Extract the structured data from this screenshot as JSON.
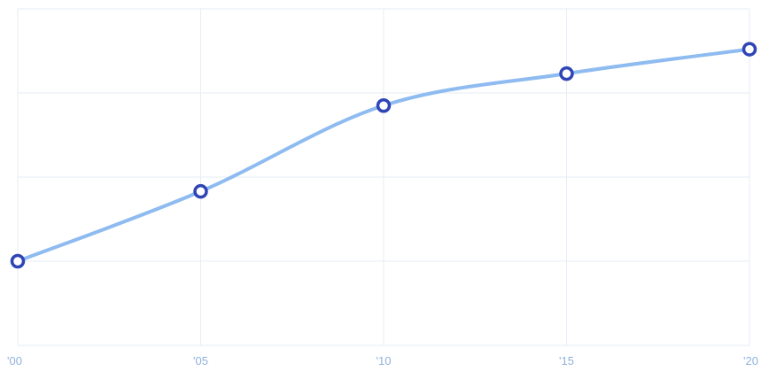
{
  "chart_data": {
    "type": "line",
    "title": "",
    "xlabel": "",
    "ylabel": "",
    "categories": [
      "'00",
      "'05",
      "'10",
      "'15",
      "'20"
    ],
    "series": [
      {
        "values": [
          1.0,
          1.83,
          2.85,
          3.23,
          3.52
        ]
      }
    ],
    "ylim": [
      0,
      4
    ],
    "grid": true,
    "legend": "none",
    "colors": {
      "line": "#8ebbf0",
      "marker": "#2f45b5",
      "grid": "#e6eef6",
      "tick_text": "#8fb1dd"
    }
  }
}
